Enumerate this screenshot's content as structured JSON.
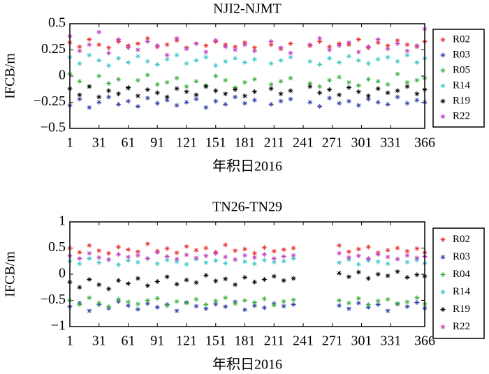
{
  "chart_data": [
    {
      "type": "scatter",
      "title": "NJI2-NJMT",
      "xlabel": "年积日2016",
      "ylabel": "IFCB/m",
      "xlim": [
        1,
        366
      ],
      "xticks": [
        1,
        31,
        61,
        91,
        121,
        151,
        181,
        211,
        241,
        271,
        301,
        331,
        366
      ],
      "ylim": [
        -0.5,
        0.5
      ],
      "yticks": [
        {
          "value": -0.5,
          "label": "−0.5"
        },
        {
          "value": -0.25,
          "label": "−0.25"
        },
        0,
        0.25,
        0.5
      ],
      "legend": "right",
      "x": [
        1,
        11,
        21,
        31,
        41,
        51,
        61,
        71,
        81,
        91,
        101,
        111,
        121,
        131,
        141,
        151,
        161,
        171,
        181,
        191,
        208,
        218,
        228,
        248,
        258,
        268,
        278,
        288,
        298,
        308,
        318,
        328,
        338,
        348,
        358,
        366
      ],
      "series": [
        {
          "name": "R02",
          "color": "#e83030",
          "values": [
            0.32,
            0.28,
            0.35,
            0.3,
            0.27,
            0.33,
            0.29,
            0.31,
            0.36,
            0.28,
            0.3,
            0.34,
            0.27,
            0.31,
            0.29,
            0.33,
            0.3,
            0.28,
            0.32,
            0.27,
            0.3,
            0.26,
            0.31,
            0.29,
            0.33,
            0.28,
            0.31,
            0.3,
            0.35,
            0.27,
            0.32,
            0.29,
            0.34,
            0.3,
            0.28,
            0.33
          ]
        },
        {
          "name": "R03",
          "color": "#3040a8",
          "values": [
            -0.28,
            -0.22,
            -0.3,
            -0.25,
            -0.2,
            -0.27,
            -0.24,
            -0.29,
            -0.21,
            -0.26,
            -0.23,
            -0.28,
            -0.25,
            -0.22,
            -0.3,
            -0.24,
            -0.27,
            -0.2,
            -0.26,
            -0.23,
            -0.27,
            -0.24,
            -0.22,
            -0.25,
            -0.29,
            -0.21,
            -0.26,
            -0.24,
            -0.28,
            -0.22,
            -0.25,
            -0.27,
            -0.2,
            -0.26,
            -0.23,
            -0.25
          ]
        },
        {
          "name": "R05",
          "color": "#40b040",
          "values": [
            0.02,
            -0.05,
            -0.1,
            0,
            -0.07,
            -0.03,
            -0.12,
            -0.04,
            0.01,
            -0.08,
            -0.06,
            -0.02,
            -0.1,
            -0.05,
            -0.09,
            0,
            -0.04,
            -0.11,
            -0.06,
            -0.03,
            -0.08,
            -0.05,
            -0.02,
            -0.07,
            -0.1,
            -0.04,
            -0.01,
            -0.06,
            -0.09,
            -0.03,
            -0.05,
            -0.08,
            0.02,
            -0.06,
            -0.04,
            -0.02
          ]
        },
        {
          "name": "R14",
          "color": "#40c8c8",
          "values": [
            0.18,
            0.12,
            0.2,
            0.15,
            0.1,
            0.17,
            0.13,
            0.19,
            0.14,
            0.11,
            0.16,
            0.2,
            0.12,
            0.15,
            0.18,
            0.1,
            0.14,
            0.17,
            0.13,
            0.16,
            0.12,
            0.15,
            0.18,
            0.14,
            0.11,
            0.17,
            0.13,
            0.19,
            0.15,
            0.12,
            0.16,
            0.18,
            0.14,
            0.2,
            0.13,
            0.17
          ]
        },
        {
          "name": "R19",
          "color": "#000000",
          "values": [
            -0.12,
            -0.18,
            -0.1,
            -0.2,
            -0.14,
            -0.17,
            -0.11,
            -0.19,
            -0.13,
            -0.16,
            -0.2,
            -0.12,
            -0.15,
            -0.18,
            -0.1,
            -0.14,
            -0.17,
            -0.13,
            -0.19,
            -0.15,
            -0.12,
            -0.17,
            -0.14,
            -0.1,
            -0.16,
            -0.13,
            -0.18,
            -0.11,
            -0.15,
            -0.19,
            -0.12,
            -0.16,
            -0.14,
            -0.1,
            -0.17,
            -0.13
          ]
        },
        {
          "name": "R22",
          "color": "#c040c0",
          "values": [
            0.38,
            0.24,
            0.3,
            0.42,
            0.22,
            0.35,
            0.27,
            0.25,
            0.33,
            0.29,
            0.2,
            0.36,
            0.26,
            0.31,
            0.23,
            0.34,
            0.28,
            0.25,
            0.3,
            0.24,
            0.33,
            0.27,
            0.22,
            0.3,
            0.36,
            0.25,
            0.29,
            0.32,
            0.23,
            0.28,
            0.35,
            0.26,
            0.31,
            0.24,
            0.29,
            0.45
          ]
        }
      ]
    },
    {
      "type": "scatter",
      "title": "TN26-TN29",
      "xlabel": "年积日2016",
      "ylabel": "IFCB/m",
      "xlim": [
        1,
        366
      ],
      "xticks": [
        1,
        31,
        61,
        91,
        121,
        151,
        181,
        211,
        241,
        271,
        301,
        331,
        366
      ],
      "ylim": [
        -1,
        1
      ],
      "yticks": [
        {
          "value": -1,
          "label": "−1"
        },
        {
          "value": -0.5,
          "label": "−0.5"
        },
        0,
        0.5,
        1
      ],
      "legend": "right",
      "x": [
        1,
        11,
        21,
        31,
        41,
        51,
        61,
        71,
        81,
        91,
        101,
        111,
        121,
        131,
        141,
        151,
        161,
        171,
        181,
        191,
        201,
        211,
        221,
        231,
        278,
        288,
        298,
        308,
        318,
        328,
        338,
        348,
        358,
        366
      ],
      "series": [
        {
          "name": "R02",
          "color": "#e83030",
          "values": [
            0.5,
            0.42,
            0.55,
            0.45,
            0.4,
            0.52,
            0.47,
            0.43,
            0.58,
            0.44,
            0.49,
            0.41,
            0.53,
            0.46,
            0.5,
            0.42,
            0.56,
            0.45,
            0.48,
            0.4,
            0.51,
            0.44,
            0.47,
            0.5,
            0.55,
            0.43,
            0.48,
            0.52,
            0.41,
            0.46,
            0.5,
            0.44,
            0.49,
            0.42
          ]
        },
        {
          "name": "R03",
          "color": "#3040a8",
          "values": [
            -0.62,
            -0.55,
            -0.7,
            -0.58,
            -0.65,
            -0.52,
            -0.6,
            -0.67,
            -0.56,
            -0.63,
            -0.58,
            -0.7,
            -0.54,
            -0.61,
            -0.66,
            -0.57,
            -0.62,
            -0.53,
            -0.68,
            -0.6,
            -0.64,
            -0.56,
            -0.61,
            -0.58,
            -0.6,
            -0.66,
            -0.55,
            -0.63,
            -0.58,
            -0.7,
            -0.57,
            -0.62,
            -0.54,
            -0.65
          ]
        },
        {
          "name": "R04",
          "color": "#40b040",
          "values": [
            -0.5,
            -0.58,
            -0.45,
            -0.55,
            -0.62,
            -0.48,
            -0.53,
            -0.57,
            -0.5,
            -0.46,
            -0.6,
            -0.52,
            -0.55,
            -0.48,
            -0.58,
            -0.51,
            -0.45,
            -0.56,
            -0.5,
            -0.54,
            -0.47,
            -0.59,
            -0.52,
            -0.49,
            -0.5,
            -0.55,
            -0.46,
            -0.58,
            -0.51,
            -0.48,
            -0.56,
            -0.53,
            -0.45,
            -0.57
          ]
        },
        {
          "name": "R14",
          "color": "#40c8c8",
          "values": [
            0.25,
            0.2,
            0.3,
            0.22,
            0.28,
            0.18,
            0.26,
            0.23,
            0.3,
            0.2,
            0.27,
            0.24,
            0.19,
            0.29,
            0.22,
            0.26,
            0.21,
            0.28,
            0.24,
            0.2,
            0.27,
            0.23,
            0.25,
            0.3,
            0.22,
            0.28,
            0.19,
            0.26,
            0.24,
            0.2,
            0.29,
            0.23,
            0.27,
            0.21
          ]
        },
        {
          "name": "R19",
          "color": "#000000",
          "values": [
            -0.15,
            -0.25,
            -0.1,
            -0.2,
            -0.28,
            -0.12,
            -0.18,
            -0.08,
            -0.22,
            -0.14,
            -0.05,
            -0.19,
            -0.11,
            -0.16,
            -0.02,
            -0.13,
            -0.09,
            -0.2,
            -0.06,
            -0.15,
            -0.1,
            -0.04,
            -0.12,
            -0.08,
            0.02,
            -0.05,
            0.04,
            -0.08,
            0,
            -0.03,
            0.05,
            -0.06,
            -0.01,
            -0.04
          ]
        },
        {
          "name": "R22",
          "color": "#c040c0",
          "values": [
            0.35,
            0.3,
            0.4,
            0.32,
            0.28,
            0.38,
            0.33,
            0.36,
            0.3,
            0.42,
            0.34,
            0.29,
            0.37,
            0.31,
            0.35,
            0.4,
            0.33,
            0.28,
            0.36,
            0.32,
            0.38,
            0.3,
            0.34,
            0.36,
            0.4,
            0.32,
            0.35,
            0.3,
            0.38,
            0.33,
            0.29,
            0.36,
            0.31,
            0.34
          ]
        }
      ]
    }
  ]
}
